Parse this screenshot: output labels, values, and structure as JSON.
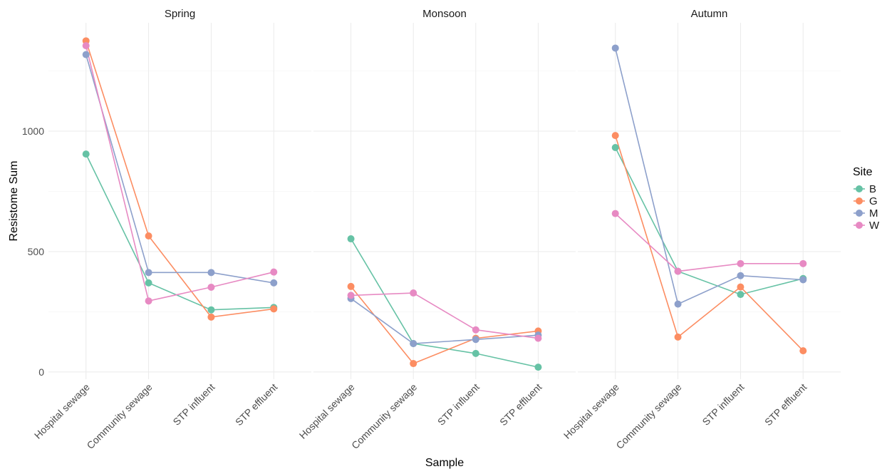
{
  "chart_data": {
    "type": "line",
    "facets": [
      "Spring",
      "Monsoon",
      "Autumn"
    ],
    "categories": [
      "Hospital sewage",
      "Community sewage",
      "STP influent",
      "STP effluent"
    ],
    "xlabel": "Sample",
    "ylabel": "Resistome Sum",
    "ylim": [
      -30,
      1450
    ],
    "yticks": [
      0,
      500,
      1000
    ],
    "grid": true,
    "legend": {
      "title": "Site",
      "position": "right"
    },
    "series": [
      {
        "name": "B",
        "color": "#66c2a5",
        "values": {
          "Spring": [
            905,
            370,
            258,
            268
          ],
          "Monsoon": [
            553,
            118,
            77,
            20
          ],
          "Autumn": [
            932,
            418,
            322,
            388
          ]
        }
      },
      {
        "name": "G",
        "color": "#fc8d62",
        "values": {
          "Spring": [
            1375,
            565,
            228,
            262
          ],
          "Monsoon": [
            355,
            35,
            140,
            170
          ],
          "Autumn": [
            982,
            145,
            353,
            88
          ]
        }
      },
      {
        "name": "M",
        "color": "#8da0cb",
        "values": {
          "Spring": [
            1318,
            413,
            413,
            370
          ],
          "Monsoon": [
            305,
            118,
            135,
            153
          ],
          "Autumn": [
            1345,
            282,
            400,
            383
          ]
        }
      },
      {
        "name": "W",
        "color": "#e78ac3",
        "values": {
          "Spring": [
            1355,
            295,
            352,
            415
          ],
          "Monsoon": [
            318,
            328,
            175,
            140
          ],
          "Autumn": [
            658,
            418,
            450,
            450
          ]
        }
      }
    ]
  }
}
